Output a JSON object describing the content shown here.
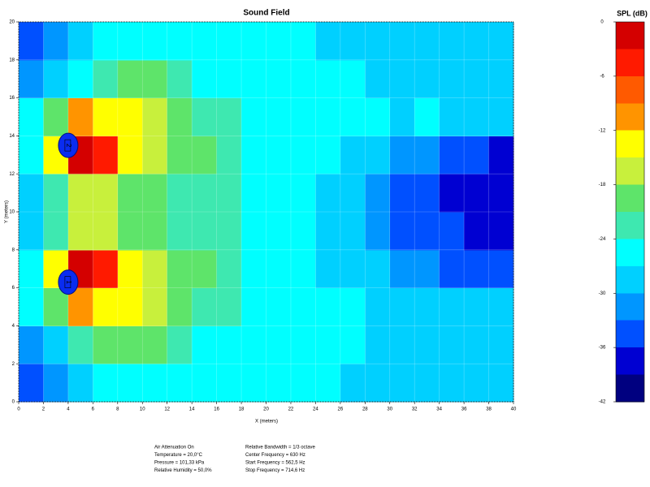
{
  "chart_data": {
    "type": "heatmap",
    "title": "Sound Field",
    "x_label": "X (meters)",
    "y_label": "Y (meters)",
    "xlim": [
      0,
      40
    ],
    "ylim": [
      0,
      20
    ],
    "xticks": [
      0,
      2,
      4,
      6,
      8,
      10,
      12,
      14,
      16,
      18,
      20,
      22,
      24,
      26,
      28,
      30,
      32,
      34,
      36,
      38,
      40
    ],
    "yticks": [
      0,
      2,
      4,
      6,
      8,
      10,
      12,
      14,
      16,
      18,
      20
    ],
    "grid": true,
    "colorbar_label": "SPL (dB)",
    "zlim": [
      -42,
      0
    ],
    "zticks": [
      0,
      -6,
      -12,
      -18,
      -24,
      -30,
      -36,
      -42
    ],
    "colors": [
      "#d40000",
      "#ff1a00",
      "#ff5a00",
      "#ff9400",
      "#ffff00",
      "#c8f03c",
      "#5ee46a",
      "#3ee8b0",
      "#00ffff",
      "#00d0ff",
      "#0096ff",
      "#0050ff",
      "#0000d2",
      "#000080"
    ],
    "z": [
      [
        -33,
        -31,
        -28,
        -26,
        -26,
        -25,
        -25,
        -25,
        -25,
        -25,
        -25,
        -26,
        -26,
        -27,
        -27,
        -27,
        -28,
        -28,
        -28,
        -28
      ],
      [
        -30,
        -27,
        -22,
        -20,
        -19,
        -20,
        -22,
        -24,
        -25,
        -25,
        -25,
        -25,
        -26,
        -26,
        -27,
        -27,
        -27,
        -27,
        -27,
        -28
      ],
      [
        -26,
        -20,
        -10,
        -12,
        -14,
        -16,
        -18,
        -21,
        -23,
        -24,
        -25,
        -25,
        -26,
        -26,
        -27,
        -27,
        -27,
        -27,
        -28,
        -28
      ],
      [
        -24,
        -12,
        -2,
        -5,
        -12,
        -15,
        -18,
        -20,
        -22,
        -24,
        -25,
        -26,
        -27,
        -28,
        -29,
        -31,
        -32,
        -33,
        -34,
        -35
      ],
      [
        -27,
        -22,
        -15,
        -17,
        -19,
        -20,
        -21,
        -22,
        -23,
        -24,
        -25,
        -26,
        -27,
        -29,
        -31,
        -33,
        -34,
        -35,
        -36,
        -36
      ],
      [
        -27,
        -22,
        -15,
        -17,
        -19,
        -20,
        -21,
        -22,
        -23,
        -24,
        -25,
        -26,
        -27,
        -29,
        -31,
        -33,
        -35,
        -36,
        -37,
        -38
      ],
      [
        -24,
        -12,
        -2,
        -5,
        -12,
        -15,
        -18,
        -20,
        -22,
        -24,
        -25,
        -25,
        -26,
        -27,
        -28,
        -30,
        -32,
        -33,
        -35,
        -36
      ],
      [
        -26,
        -20,
        -10,
        -12,
        -14,
        -16,
        -18,
        -21,
        -23,
        -24,
        -25,
        -25,
        -25,
        -26,
        -26,
        -27,
        -26,
        -27,
        -27,
        -27
      ],
      [
        -30,
        -27,
        -24,
        -21,
        -19,
        -20,
        -22,
        -24,
        -25,
        -25,
        -25,
        -25,
        -26,
        -26,
        -27,
        -27,
        -27,
        -28,
        -27,
        -28
      ],
      [
        -33,
        -31,
        -28,
        -26,
        -25,
        -25,
        -25,
        -25,
        -25,
        -25,
        -25,
        -26,
        -27,
        -27,
        -28,
        -28,
        -27,
        -28,
        -28,
        -28
      ]
    ],
    "sources": [
      {
        "label": "2",
        "x": 4,
        "y": 13.5
      },
      {
        "label": "1",
        "x": 4,
        "y": 6.3
      }
    ],
    "info_left": [
      "Air Attenuation On",
      "Temperature = 20,0°C",
      "Pressure = 101,33 kPa",
      "Relative Humidity = 50,0%"
    ],
    "info_right": [
      "Relative Bandwidth = 1/3 octave",
      "Center Frequency = 630 Hz",
      "Start Frequency = 562,5 Hz",
      "Stop Frequency = 714,6 Hz"
    ]
  }
}
